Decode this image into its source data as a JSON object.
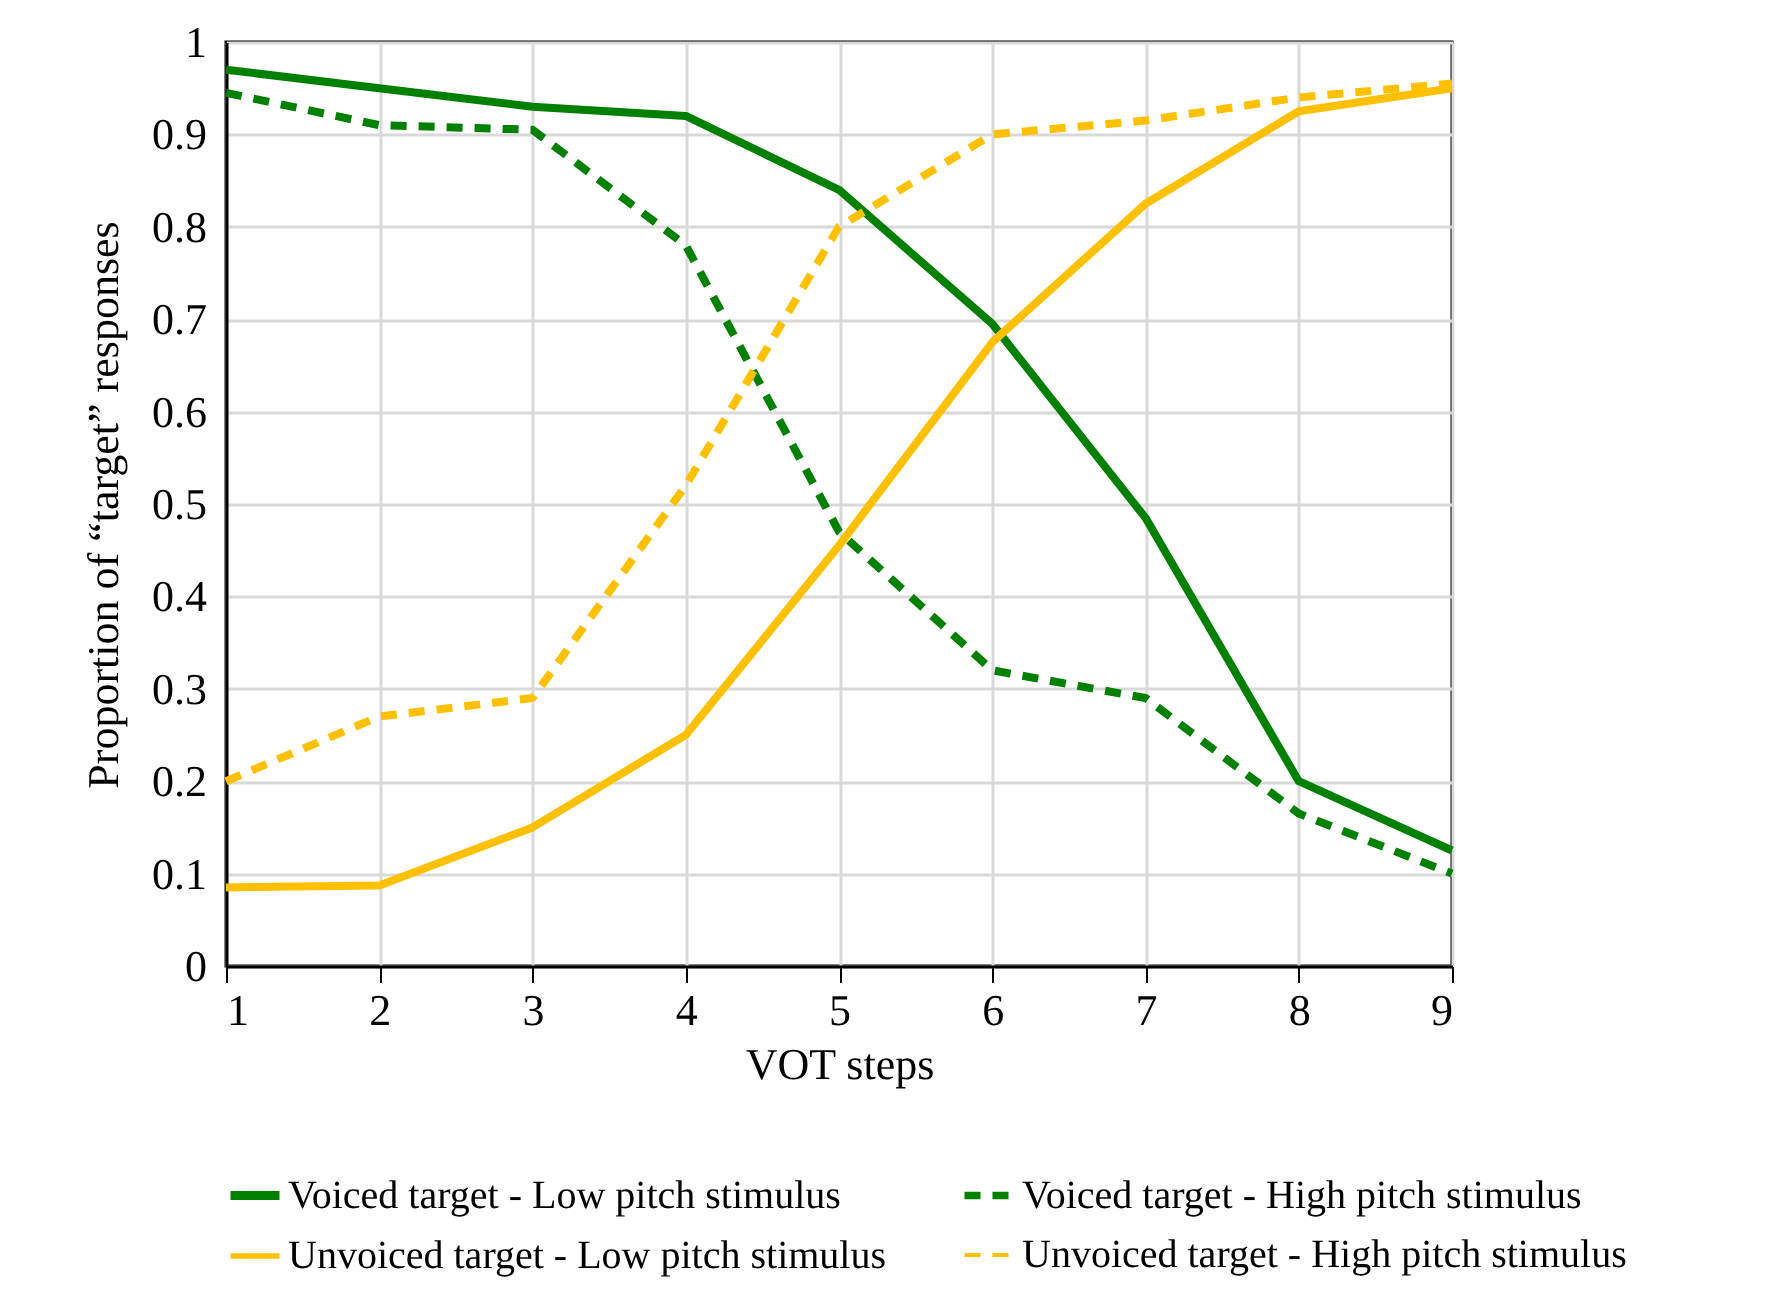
{
  "chart_data": {
    "type": "line",
    "xlabel": "VOT steps",
    "ylabel": "Proportion of  “target” responses",
    "x": [
      1,
      2,
      3,
      4,
      5,
      6,
      7,
      8,
      9
    ],
    "xlim": [
      1,
      9
    ],
    "xticks": [
      1,
      2,
      3,
      4,
      5,
      6,
      7,
      8,
      9
    ],
    "ylim": [
      0,
      1
    ],
    "yticks": [
      0,
      0.1,
      0.2,
      0.3,
      0.4,
      0.5,
      0.6,
      0.7,
      0.8,
      0.9,
      1
    ],
    "grid": true,
    "legend": "bottom",
    "marker": "none",
    "series": [
      {
        "name": "Voiced target - Low pitch stimulus",
        "color": "#008000",
        "line_style": "solid",
        "values": [
          0.97,
          0.95,
          0.93,
          0.92,
          0.84,
          0.695,
          0.485,
          0.2,
          0.125
        ]
      },
      {
        "name": "Voiced target - High pitch stimulus",
        "color": "#008000",
        "line_style": "dashed",
        "values": [
          0.945,
          0.91,
          0.905,
          0.78,
          0.47,
          0.32,
          0.29,
          0.165,
          0.1
        ]
      },
      {
        "name": "Unvoiced target - Low pitch stimulus",
        "color": "#ffc000",
        "line_style": "solid",
        "values": [
          0.085,
          0.087,
          0.15,
          0.25,
          0.455,
          0.675,
          0.825,
          0.925,
          0.95
        ]
      },
      {
        "name": "Unvoiced target - High pitch stimulus",
        "color": "#ffc000",
        "line_style": "dashed",
        "values": [
          0.2,
          0.27,
          0.29,
          0.52,
          0.8,
          0.9,
          0.915,
          0.94,
          0.955
        ]
      }
    ]
  }
}
